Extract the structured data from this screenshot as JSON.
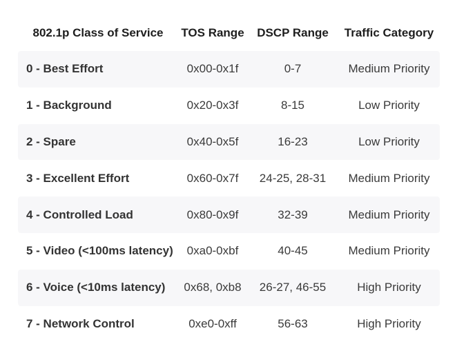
{
  "table": {
    "headers": [
      "802.1p Class of Service",
      "TOS Range",
      "DSCP Range",
      "Traffic Category"
    ],
    "rows": [
      [
        "0 - Best Effort",
        "0x00-0x1f",
        "0-7",
        "Medium Priority"
      ],
      [
        "1 - Background",
        "0x20-0x3f",
        "8-15",
        "Low Priority"
      ],
      [
        "2 - Spare",
        "0x40-0x5f",
        "16-23",
        "Low Priority"
      ],
      [
        "3 - Excellent Effort",
        "0x60-0x7f",
        "24-25, 28-31",
        "Medium Priority"
      ],
      [
        "4 - Controlled Load",
        "0x80-0x9f",
        "32-39",
        "Medium Priority"
      ],
      [
        "5 - Video (<100ms latency)",
        "0xa0-0xbf",
        "40-45",
        "Medium Priority"
      ],
      [
        "6 - Voice (<10ms latency)",
        "0x68, 0xb8",
        "26-27, 46-55",
        "High Priority"
      ],
      [
        "7 - Network Control",
        "0xe0-0xff",
        "56-63",
        "High Priority"
      ]
    ]
  },
  "colors": {
    "stripe": "#f7f7f9",
    "text": "#3a3a3a",
    "header_text": "#1e1e1e"
  }
}
